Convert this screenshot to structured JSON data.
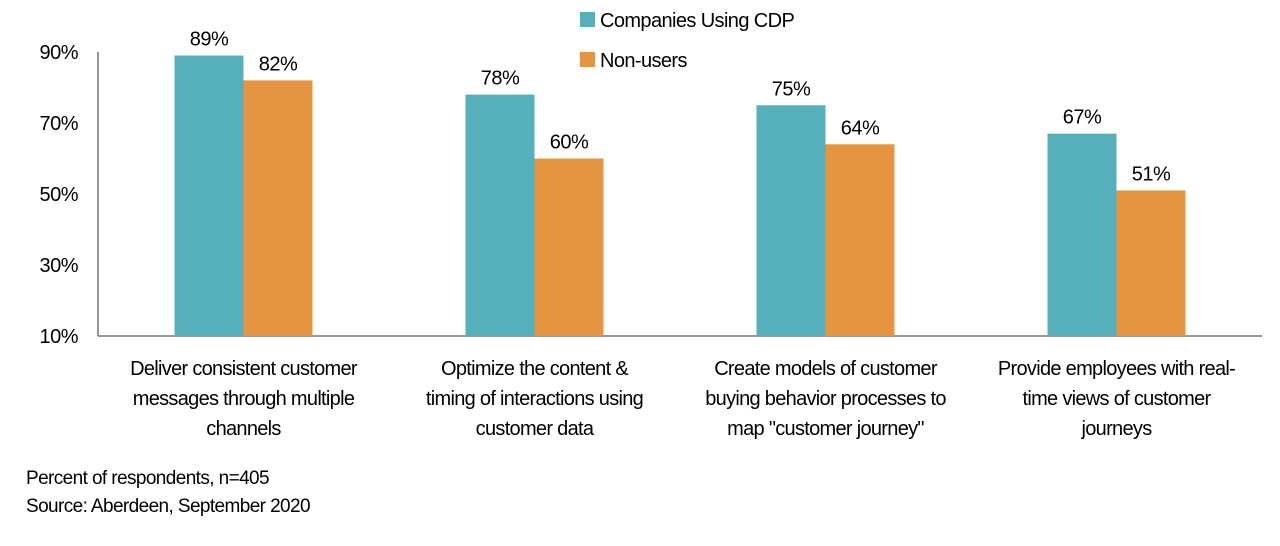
{
  "chart_data": {
    "type": "bar",
    "title": "",
    "xlabel": "",
    "ylabel": "",
    "ylim": [
      10,
      90
    ],
    "yticks": [
      "90%",
      "70%",
      "50%",
      "30%",
      "10%"
    ],
    "ytick_values": [
      90,
      70,
      50,
      30,
      10
    ],
    "legend_placement": "top-center",
    "categories": [
      [
        "Deliver consistent customer",
        "messages through multiple",
        "channels"
      ],
      [
        "Optimize the content &",
        "timing of interactions using",
        "customer data"
      ],
      [
        "Create models of customer",
        "buying behavior processes to",
        "map \"customer journey\""
      ],
      [
        "Provide employees with real-",
        "time views of customer",
        "journeys"
      ]
    ],
    "series": [
      {
        "name": "Companies Using CDP",
        "color": "#56b0bb",
        "values": [
          89,
          78,
          75,
          67
        ],
        "labels": [
          "89%",
          "78%",
          "75%",
          "67%"
        ]
      },
      {
        "name": "Non-users",
        "color": "#e59540",
        "values": [
          82,
          60,
          64,
          51
        ],
        "labels": [
          "82%",
          "60%",
          "64%",
          "51%"
        ]
      }
    ]
  },
  "footer": {
    "note": "Percent of respondents, n=405",
    "source": "Source: Aberdeen, September 2020"
  }
}
